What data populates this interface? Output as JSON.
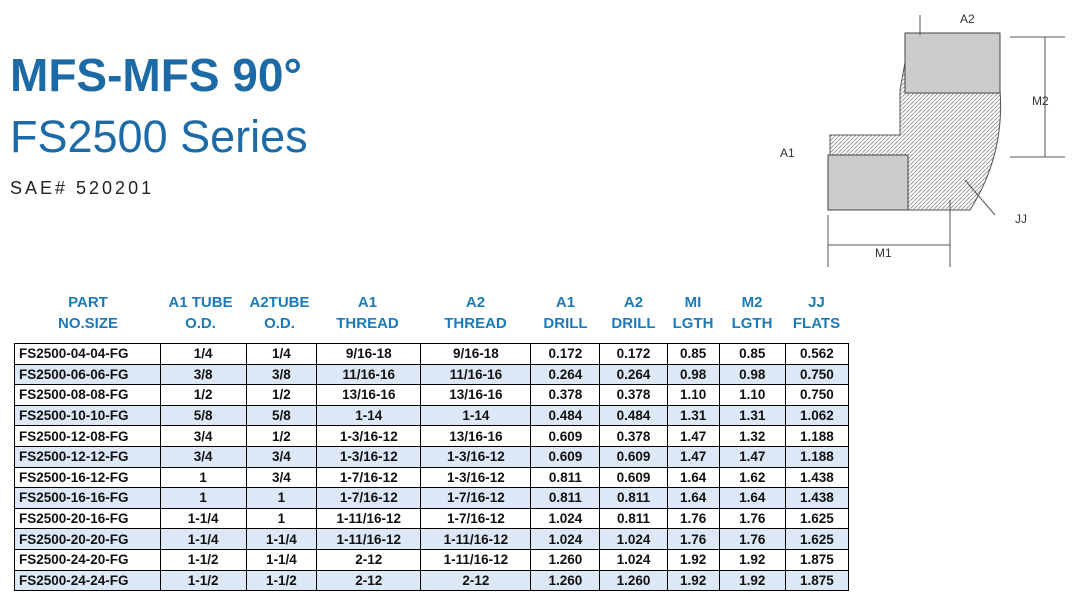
{
  "header": {
    "title": "MFS-MFS 90°",
    "subtitle": "FS2500 Series",
    "sae": "SAE# 520201"
  },
  "diagram": {
    "labels": [
      "A2",
      "M2",
      "A1",
      "JJ",
      "M1"
    ]
  },
  "table": {
    "headers": [
      [
        "PART",
        "NO.SIZE"
      ],
      [
        "A1 TUBE",
        "O.D."
      ],
      [
        "A2TUBE",
        "O.D."
      ],
      [
        "A1",
        "THREAD"
      ],
      [
        "A2",
        "THREAD"
      ],
      [
        "A1",
        "DRILL"
      ],
      [
        "A2",
        "DRILL"
      ],
      [
        "MI",
        "LGTH"
      ],
      [
        "M2",
        "LGTH"
      ],
      [
        "JJ",
        "FLATS"
      ]
    ],
    "rows": [
      [
        "FS2500-04-04-FG",
        "1/4",
        "1/4",
        "9/16-18",
        "9/16-18",
        "0.172",
        "0.172",
        "0.85",
        "0.85",
        "0.562"
      ],
      [
        "FS2500-06-06-FG",
        "3/8",
        "3/8",
        "11/16-16",
        "11/16-16",
        "0.264",
        "0.264",
        "0.98",
        "0.98",
        "0.750"
      ],
      [
        "FS2500-08-08-FG",
        "1/2",
        "1/2",
        "13/16-16",
        "13/16-16",
        "0.378",
        "0.378",
        "1.10",
        "1.10",
        "0.750"
      ],
      [
        "FS2500-10-10-FG",
        "5/8",
        "5/8",
        "1-14",
        "1-14",
        "0.484",
        "0.484",
        "1.31",
        "1.31",
        "1.062"
      ],
      [
        "FS2500-12-08-FG",
        "3/4",
        "1/2",
        "1-3/16-12",
        "13/16-16",
        "0.609",
        "0.378",
        "1.47",
        "1.32",
        "1.188"
      ],
      [
        "FS2500-12-12-FG",
        "3/4",
        "3/4",
        "1-3/16-12",
        "1-3/16-12",
        "0.609",
        "0.609",
        "1.47",
        "1.47",
        "1.188"
      ],
      [
        "FS2500-16-12-FG",
        "1",
        "3/4",
        "1-7/16-12",
        "1-3/16-12",
        "0.811",
        "0.609",
        "1.64",
        "1.62",
        "1.438"
      ],
      [
        "FS2500-16-16-FG",
        "1",
        "1",
        "1-7/16-12",
        "1-7/16-12",
        "0.811",
        "0.811",
        "1.64",
        "1.64",
        "1.438"
      ],
      [
        "FS2500-20-16-FG",
        "1-1/4",
        "1",
        "1-11/16-12",
        "1-7/16-12",
        "1.024",
        "0.811",
        "1.76",
        "1.76",
        "1.625"
      ],
      [
        "FS2500-20-20-FG",
        "1-1/4",
        "1-1/4",
        "1-11/16-12",
        "1-11/16-12",
        "1.024",
        "1.024",
        "1.76",
        "1.76",
        "1.625"
      ],
      [
        "FS2500-24-20-FG",
        "1-1/2",
        "1-1/4",
        "2-12",
        "1-11/16-12",
        "1.260",
        "1.024",
        "1.92",
        "1.92",
        "1.875"
      ],
      [
        "FS2500-24-24-FG",
        "1-1/2",
        "1-1/2",
        "2-12",
        "2-12",
        "1.260",
        "1.260",
        "1.92",
        "1.92",
        "1.875"
      ]
    ]
  }
}
